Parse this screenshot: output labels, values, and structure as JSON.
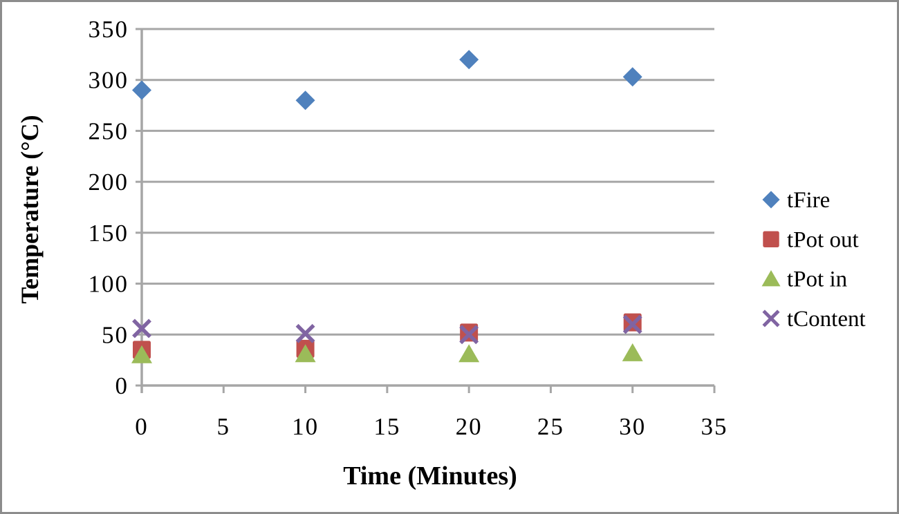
{
  "window": {
    "background": "#FFFFFF",
    "border_color": "#8C8C8C"
  },
  "chart_data": {
    "type": "scatter",
    "title": "",
    "xlabel": "Time (Minutes)",
    "ylabel": "Temperature (°C)",
    "xlim": [
      0,
      35
    ],
    "ylim": [
      0,
      350
    ],
    "xticks": [
      0,
      5,
      10,
      15,
      20,
      25,
      30,
      35
    ],
    "yticks": [
      0,
      50,
      100,
      150,
      200,
      250,
      300,
      350
    ],
    "grid": "horizontal",
    "gridline_color": "#A6A6A6",
    "axis_color": "#A6A6A6",
    "legend_position": "right",
    "series": [
      {
        "name": "tFire",
        "marker": "diamond",
        "color": "#4F81BD",
        "points": [
          [
            0,
            290
          ],
          [
            10,
            280
          ],
          [
            20,
            320
          ],
          [
            30,
            303
          ]
        ]
      },
      {
        "name": "tPot out",
        "marker": "square",
        "color": "#C0504D",
        "points": [
          [
            0,
            35
          ],
          [
            10,
            36
          ],
          [
            20,
            52
          ],
          [
            30,
            62
          ]
        ]
      },
      {
        "name": "tPot in",
        "marker": "triangle",
        "color": "#9BBB59",
        "points": [
          [
            0,
            30
          ],
          [
            10,
            31
          ],
          [
            20,
            31
          ],
          [
            30,
            32
          ]
        ]
      },
      {
        "name": "tContent",
        "marker": "x",
        "color": "#8064A2",
        "points": [
          [
            0,
            56
          ],
          [
            10,
            51
          ],
          [
            20,
            50
          ],
          [
            30,
            60
          ]
        ]
      }
    ]
  }
}
